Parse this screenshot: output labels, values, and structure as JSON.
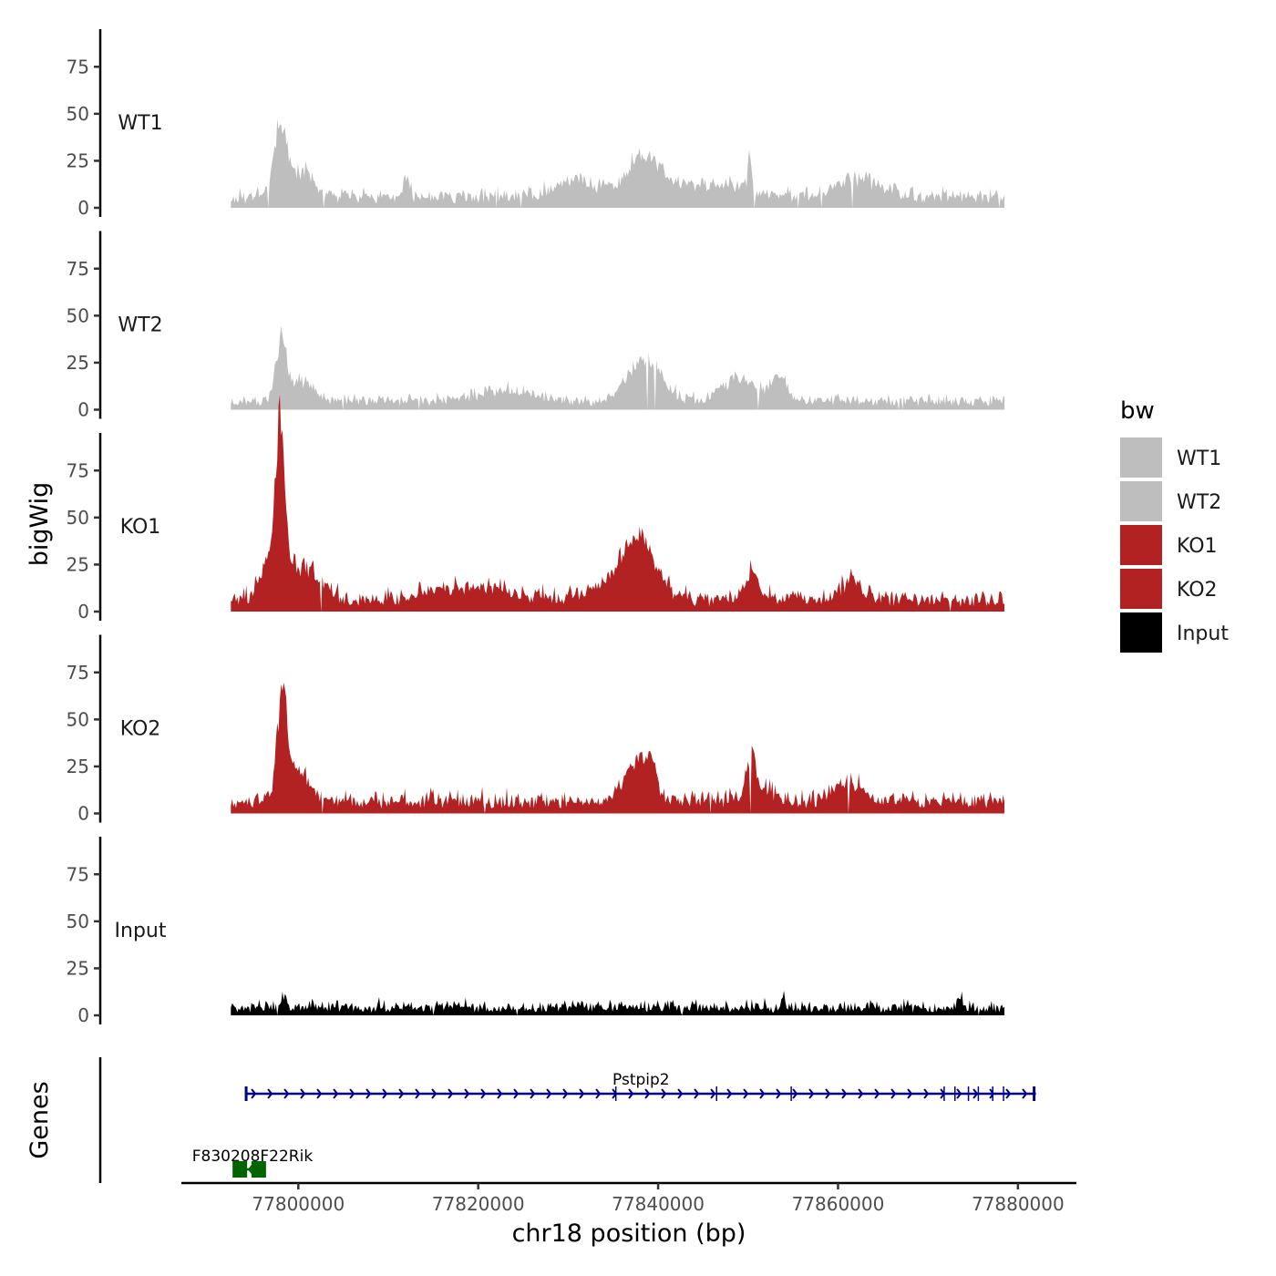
{
  "chart_data": {
    "type": "area",
    "x_title": "chr18 position (bp)",
    "y_title": "bigWig",
    "genes_title": "Genes",
    "xlim": [
      77787000,
      77886500
    ],
    "ylim": [
      0,
      95
    ],
    "y_ticks": [
      0,
      25,
      50,
      75
    ],
    "y_tick_labels": [
      "0",
      "25",
      "50",
      "75"
    ],
    "x_ticks": [
      77800000,
      77820000,
      77840000,
      77860000,
      77880000
    ],
    "x_tick_labels": [
      "77800000",
      "77820000",
      "77840000",
      "77860000",
      "77880000"
    ],
    "data_range": [
      77792500,
      77878500
    ],
    "legend": {
      "title": "bw",
      "items": [
        {
          "label": "WT1",
          "color": "#bebebe"
        },
        {
          "label": "WT2",
          "color": "#bebebe"
        },
        {
          "label": "KO1",
          "color": "#b22222"
        },
        {
          "label": "KO2",
          "color": "#b22222"
        },
        {
          "label": "Input",
          "color": "#000000"
        }
      ]
    },
    "tracks": [
      {
        "label": "WT1",
        "color": "#bebebe",
        "baseline": 6,
        "noise": 5,
        "seed": 11,
        "peaks": [
          {
            "x": 77798000,
            "height": 42,
            "width": 700
          },
          {
            "x": 77800500,
            "height": 14,
            "width": 1200
          },
          {
            "x": 77812000,
            "height": 10,
            "width": 300
          },
          {
            "x": 77831000,
            "height": 10,
            "width": 2500
          },
          {
            "x": 77838500,
            "height": 24,
            "width": 1800
          },
          {
            "x": 77850200,
            "height": 22,
            "width": 200
          },
          {
            "x": 77846000,
            "height": 8,
            "width": 4000
          },
          {
            "x": 77862000,
            "height": 10,
            "width": 2500
          }
        ]
      },
      {
        "label": "WT2",
        "color": "#bebebe",
        "baseline": 5,
        "noise": 4,
        "seed": 23,
        "peaks": [
          {
            "x": 77798100,
            "height": 36,
            "width": 600
          },
          {
            "x": 77800500,
            "height": 12,
            "width": 1200
          },
          {
            "x": 77823000,
            "height": 6,
            "width": 3000
          },
          {
            "x": 77838500,
            "height": 24,
            "width": 1800
          },
          {
            "x": 77849000,
            "height": 12,
            "width": 2000
          },
          {
            "x": 77853500,
            "height": 14,
            "width": 900
          }
        ]
      },
      {
        "label": "KO1",
        "color": "#b22222",
        "baseline": 7,
        "noise": 6,
        "seed": 37,
        "peaks": [
          {
            "x": 77798000,
            "height": 72,
            "width": 450
          },
          {
            "x": 77797500,
            "height": 30,
            "width": 1300
          },
          {
            "x": 77800800,
            "height": 16,
            "width": 1800
          },
          {
            "x": 77819000,
            "height": 8,
            "width": 4000
          },
          {
            "x": 77838000,
            "height": 28,
            "width": 1600
          },
          {
            "x": 77836000,
            "height": 12,
            "width": 3000
          },
          {
            "x": 77850500,
            "height": 18,
            "width": 700
          },
          {
            "x": 77861500,
            "height": 10,
            "width": 1200
          }
        ]
      },
      {
        "label": "KO2",
        "color": "#b22222",
        "baseline": 7,
        "noise": 6,
        "seed": 53,
        "peaks": [
          {
            "x": 77798200,
            "height": 50,
            "width": 500
          },
          {
            "x": 77799500,
            "height": 20,
            "width": 1500
          },
          {
            "x": 77837500,
            "height": 22,
            "width": 1300
          },
          {
            "x": 77839200,
            "height": 18,
            "width": 600
          },
          {
            "x": 77850300,
            "height": 26,
            "width": 500
          },
          {
            "x": 77851500,
            "height": 8,
            "width": 1200
          },
          {
            "x": 77861000,
            "height": 12,
            "width": 1500
          }
        ]
      },
      {
        "label": "Input",
        "color": "#000000",
        "baseline": 4,
        "noise": 5,
        "seed": 71,
        "peaks": [
          {
            "x": 77798500,
            "height": 7,
            "width": 300
          },
          {
            "x": 77854000,
            "height": 8,
            "width": 150
          },
          {
            "x": 77873500,
            "height": 5,
            "width": 300
          }
        ]
      }
    ],
    "genes": [
      {
        "name": "Pstpip2",
        "start": 77794200,
        "end": 77882000,
        "strand": "+",
        "color": "#00008b",
        "exons": [
          77794200,
          77835300,
          77846500,
          77854800,
          77871800,
          77873000,
          77874500,
          77875600,
          77877200,
          77878400,
          77881800
        ]
      },
      {
        "name": "F830208F22Rik",
        "start": 77793500,
        "end": 77796300,
        "strand": "-",
        "color": "#006400",
        "exons": [
          77793500,
          77795600
        ]
      }
    ]
  }
}
